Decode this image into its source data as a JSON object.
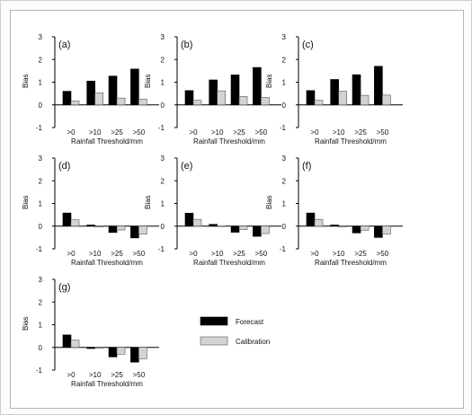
{
  "chart_data": [
    {
      "panel_label": "(a)",
      "type": "bar",
      "categories": [
        ">0",
        ">10",
        ">25",
        ">50"
      ],
      "series": [
        {
          "name": "Forecast",
          "values": [
            0.6,
            1.05,
            1.27,
            1.58
          ]
        },
        {
          "name": "Calibration",
          "values": [
            0.17,
            0.53,
            0.3,
            0.25
          ]
        }
      ],
      "xlabel": "Rainfall Threshold/mm",
      "ylabel": "Bias",
      "ylim": [
        -1,
        3
      ],
      "yticks": [
        -1,
        0,
        1,
        2,
        3
      ]
    },
    {
      "panel_label": "(b)",
      "type": "bar",
      "categories": [
        ">0",
        ">10",
        ">25",
        ">50"
      ],
      "series": [
        {
          "name": "Forecast",
          "values": [
            0.63,
            1.1,
            1.32,
            1.65
          ]
        },
        {
          "name": "Calibration",
          "values": [
            0.2,
            0.62,
            0.37,
            0.33
          ]
        }
      ],
      "xlabel": "Rainfall Threshold/mm",
      "ylabel": "Bias",
      "ylim": [
        -1,
        3
      ],
      "yticks": [
        -1,
        0,
        1,
        2,
        3
      ]
    },
    {
      "panel_label": "(c)",
      "type": "bar",
      "categories": [
        ">0",
        ">10",
        ">25",
        ">50"
      ],
      "series": [
        {
          "name": "Forecast",
          "values": [
            0.63,
            1.12,
            1.33,
            1.7
          ]
        },
        {
          "name": "Calibration",
          "values": [
            0.2,
            0.6,
            0.42,
            0.43
          ]
        }
      ],
      "xlabel": "Rainfall Threshold/mm",
      "ylabel": "Bias",
      "ylim": [
        -1,
        3
      ],
      "yticks": [
        -1,
        0,
        1,
        2,
        3
      ]
    },
    {
      "panel_label": "(d)",
      "type": "bar",
      "categories": [
        ">0",
        ">10",
        ">25",
        ">50"
      ],
      "series": [
        {
          "name": "Forecast",
          "values": [
            0.58,
            0.05,
            -0.28,
            -0.52
          ]
        },
        {
          "name": "Calibration",
          "values": [
            0.28,
            -0.03,
            -0.17,
            -0.35
          ]
        }
      ],
      "xlabel": "Rainfall Threshold/mm",
      "ylabel": "Bias",
      "ylim": [
        -1,
        3
      ],
      "yticks": [
        -1,
        0,
        1,
        2,
        3
      ]
    },
    {
      "panel_label": "(e)",
      "type": "bar",
      "categories": [
        ">0",
        ">10",
        ">25",
        ">50"
      ],
      "series": [
        {
          "name": "Forecast",
          "values": [
            0.57,
            0.08,
            -0.27,
            -0.45
          ]
        },
        {
          "name": "Calibration",
          "values": [
            0.3,
            0.02,
            -0.15,
            -0.33
          ]
        }
      ],
      "xlabel": "Rainfall Threshold/mm",
      "ylabel": "Bias",
      "ylim": [
        -1,
        3
      ],
      "yticks": [
        -1,
        0,
        1,
        2,
        3
      ]
    },
    {
      "panel_label": "(f)",
      "type": "bar",
      "categories": [
        ">0",
        ">10",
        ">25",
        ">50"
      ],
      "series": [
        {
          "name": "Forecast",
          "values": [
            0.58,
            0.05,
            -0.3,
            -0.5
          ]
        },
        {
          "name": "Calibration",
          "values": [
            0.3,
            -0.02,
            -0.18,
            -0.35
          ]
        }
      ],
      "xlabel": "Rainfall Threshold/mm",
      "ylabel": "Bias",
      "ylim": [
        -1,
        3
      ],
      "yticks": [
        -1,
        0,
        1,
        2,
        3
      ]
    },
    {
      "panel_label": "(g)",
      "type": "bar",
      "categories": [
        ">0",
        ">10",
        ">25",
        ">50"
      ],
      "series": [
        {
          "name": "Forecast",
          "values": [
            0.55,
            -0.05,
            -0.42,
            -0.65
          ]
        },
        {
          "name": "Calibration",
          "values": [
            0.32,
            -0.03,
            -0.3,
            -0.5
          ]
        }
      ],
      "xlabel": "Rainfall Threshold/mm",
      "ylabel": "Bias",
      "ylim": [
        -1,
        3
      ],
      "yticks": [
        -1,
        0,
        1,
        2,
        3
      ]
    }
  ],
  "legend": {
    "items": [
      {
        "name": "Forecast",
        "color": "#000000"
      },
      {
        "name": "Calibration",
        "color": "#d3d3d3"
      }
    ]
  }
}
